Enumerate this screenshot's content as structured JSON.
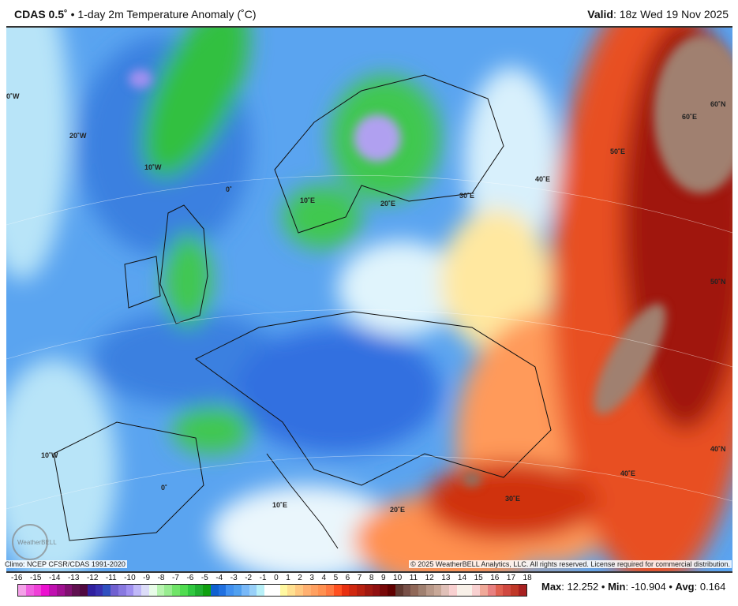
{
  "header": {
    "model": "CDAS 0.5˚",
    "bullet": "•",
    "product": "1-day 2m Temperature Anomaly (˚C)",
    "valid_label": "Valid",
    "valid_value": ": 18z Wed 19 Nov 2025"
  },
  "footer": {
    "climo": "Climo: NCEP CFSR/CDAS 1991-2020",
    "copyright": "© 2025 WeatherBELL Analytics, LLC. All rights reserved. License required for commercial distribution."
  },
  "logo": "WeatherBELL",
  "map_labels": [
    "0˚W",
    "20˚W",
    "10˚W",
    "0˚",
    "10˚E",
    "20˚E",
    "30˚E",
    "40˚E",
    "50˚E",
    "60˚E",
    "60˚N",
    "50˚N",
    "40˚N",
    "40˚E",
    "30˚E",
    "20˚E",
    "10˚E",
    "0˚",
    "10˚W"
  ],
  "colorbar": {
    "ticks": [
      "-16",
      "-15",
      "-14",
      "-13",
      "-12",
      "-11",
      "-10",
      "-9",
      "-8",
      "-7",
      "-6",
      "-5",
      "-4",
      "-3",
      "-2",
      "-1",
      "0",
      "1",
      "2",
      "3",
      "4",
      "5",
      "6",
      "7",
      "8",
      "9",
      "10",
      "11",
      "12",
      "13",
      "14",
      "15",
      "16",
      "17",
      "18"
    ],
    "colors": [
      "#f4a0e8",
      "#f060e0",
      "#f040d8",
      "#ec10d0",
      "#c010b0",
      "#a01090",
      "#801070",
      "#601050",
      "#500840",
      "#3020a0",
      "#3830b0",
      "#3050c0",
      "#7060d0",
      "#8878e0",
      "#a090f0",
      "#c0b8f8",
      "#dcdcf8",
      "#e8fce8",
      "#b8f4b0",
      "#98ec90",
      "#70e468",
      "#50dc50",
      "#30c840",
      "#20b030",
      "#10a010",
      "#1060d0",
      "#2070e0",
      "#4090f0",
      "#50a0f0",
      "#78b8f8",
      "#98d0f8",
      "#b8f0f8",
      "#ffffff",
      "#ffffff",
      "#fff8a0",
      "#ffe090",
      "#ffc880",
      "#ffb070",
      "#ffa060",
      "#ff9050",
      "#ff7840",
      "#ff5020",
      "#e83010",
      "#d02810",
      "#b82010",
      "#a01810",
      "#901010",
      "#780808",
      "#600000",
      "#603830",
      "#785048",
      "#906858",
      "#a08070",
      "#b89888",
      "#c8a898",
      "#e0c0b8",
      "#f8d0d0",
      "#f8f0e8",
      "#f8f0e8",
      "#f8d0d0",
      "#f0a898",
      "#e88080",
      "#e06050",
      "#d04840",
      "#c03828",
      "#a82020"
    ]
  },
  "stats": {
    "max_label": "Max",
    "max_value": ": 12.252 • ",
    "min_label": "Min",
    "min_value": ": -10.904 • ",
    "avg_label": "Avg",
    "avg_value": ": 0.164"
  }
}
